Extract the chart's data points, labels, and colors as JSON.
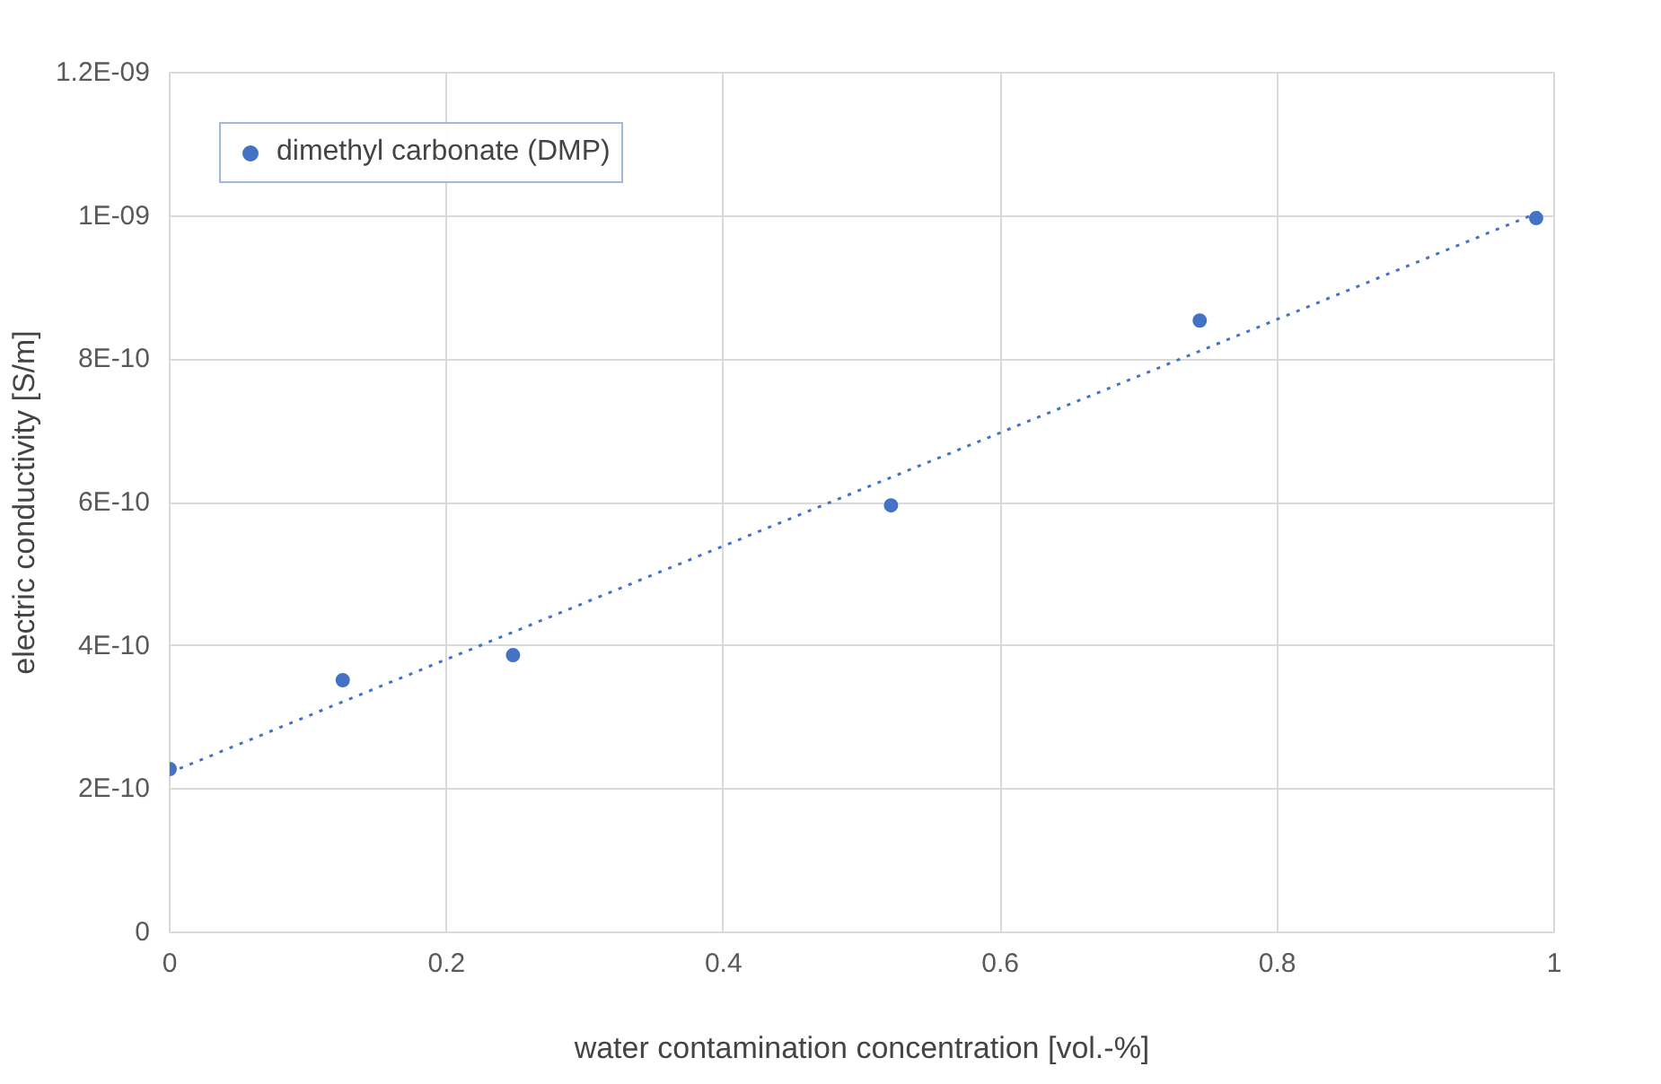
{
  "chart_data": {
    "type": "scatter",
    "xlabel": "water contamination concentration [vol.-%]",
    "ylabel": "electric conductivity [S/m]",
    "x": [
      0,
      0.125,
      0.248,
      0.521,
      0.744,
      0.987
    ],
    "series": [
      {
        "name": "dimethyl carbonate (DMP)",
        "color": "#4472c4",
        "values": [
          2.28e-10,
          3.52e-10,
          3.87e-10,
          5.96e-10,
          8.54e-10,
          9.97e-10
        ],
        "marker": "circle"
      },
      {
        "type": "line",
        "color": "#4472c4",
        "line_style": "dotted",
        "x": [
          0,
          0.99
        ],
        "values": [
          2.23e-10,
          1.006e-09
        ]
      }
    ],
    "xlim": [
      0,
      1
    ],
    "ylim": [
      0,
      1.2e-09
    ],
    "xticks": [
      0,
      0.2,
      0.4,
      0.6,
      0.8,
      1
    ],
    "yticks": [
      0,
      {
        "value": 2e-10,
        "label": "2E-10"
      },
      {
        "value": 4e-10,
        "label": "4E-10"
      },
      {
        "value": 6e-10,
        "label": "6E-10"
      },
      {
        "value": 8e-10,
        "label": "8E-10"
      },
      {
        "value": 1e-09,
        "label": "1E-09"
      },
      {
        "value": 1.2e-09,
        "label": "1.2E-09"
      }
    ],
    "grid": true,
    "legend": "top left"
  }
}
